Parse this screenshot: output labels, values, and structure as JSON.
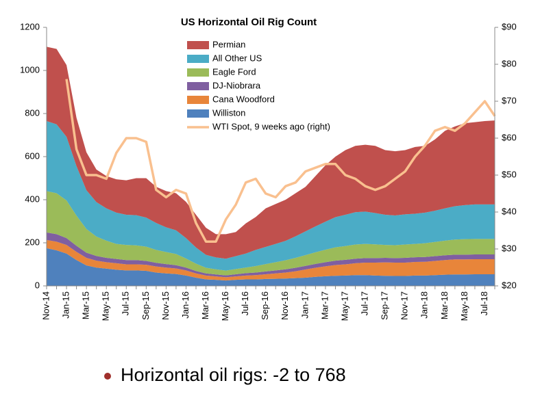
{
  "chart_data": {
    "type": "area",
    "title": "US Horizontal Oil Rig Count",
    "categories": [
      "Nov-14",
      null,
      "Jan-15",
      null,
      "Mar-15",
      null,
      "May-15",
      null,
      "Jul-15",
      null,
      "Sep-15",
      null,
      "Nov-15",
      null,
      "Jan-16",
      null,
      "Mar-16",
      null,
      "May-16",
      null,
      "Jul-16",
      null,
      "Sep-16",
      null,
      "Nov-16",
      null,
      "Jan-17",
      null,
      "Mar-17",
      null,
      "May-17",
      null,
      "Jul-17",
      null,
      "Sep-17",
      null,
      "Nov-17",
      null,
      "Jan-18",
      null,
      "Mar-18",
      null,
      "May-18",
      null,
      "Jul-18",
      null
    ],
    "series": [
      {
        "name": "Williston",
        "color": "#4f81bd",
        "values": [
          175,
          165,
          150,
          120,
          95,
          85,
          80,
          75,
          72,
          72,
          70,
          62,
          58,
          55,
          48,
          38,
          30,
          28,
          25,
          28,
          30,
          30,
          32,
          33,
          34,
          36,
          38,
          42,
          45,
          47,
          48,
          50,
          50,
          48,
          47,
          46,
          46,
          48,
          48,
          50,
          52,
          53,
          53,
          54,
          54,
          54
        ]
      },
      {
        "name": "Cana Woodford",
        "color": "#e8853a",
        "values": [
          38,
          40,
          40,
          38,
          35,
          32,
          30,
          30,
          28,
          28,
          28,
          28,
          27,
          26,
          24,
          20,
          18,
          16,
          15,
          16,
          18,
          20,
          22,
          25,
          28,
          32,
          38,
          42,
          46,
          50,
          52,
          55,
          58,
          60,
          62,
          62,
          62,
          63,
          64,
          66,
          68,
          70,
          70,
          70,
          70,
          70
        ]
      },
      {
        "name": "DJ-Niobrara",
        "color": "#7f5fa0",
        "values": [
          35,
          35,
          32,
          28,
          24,
          22,
          20,
          20,
          20,
          20,
          18,
          17,
          16,
          15,
          13,
          11,
          10,
          9,
          9,
          10,
          11,
          12,
          13,
          14,
          15,
          16,
          17,
          18,
          19,
          20,
          21,
          21,
          21,
          21,
          21,
          21,
          22,
          22,
          22,
          22,
          22,
          22,
          22,
          22,
          22,
          22
        ]
      },
      {
        "name": "Eagle Ford",
        "color": "#9bbb59",
        "values": [
          192,
          190,
          175,
          140,
          110,
          90,
          80,
          70,
          70,
          68,
          66,
          60,
          56,
          52,
          42,
          34,
          26,
          24,
          22,
          24,
          26,
          30,
          34,
          38,
          42,
          46,
          50,
          54,
          58,
          62,
          64,
          66,
          66,
          64,
          60,
          60,
          62,
          62,
          64,
          66,
          68,
          70,
          72,
          72,
          72,
          72
        ]
      },
      {
        "name": "All Other US",
        "color": "#4bacc6",
        "values": [
          325,
          320,
          295,
          230,
          180,
          160,
          150,
          145,
          140,
          140,
          135,
          125,
          115,
          110,
          95,
          75,
          60,
          55,
          55,
          60,
          65,
          75,
          80,
          85,
          90,
          100,
          110,
          120,
          130,
          140,
          145,
          150,
          150,
          145,
          140,
          138,
          140,
          140,
          142,
          145,
          150,
          155,
          158,
          160,
          160,
          160
        ]
      },
      {
        "name": "Permian",
        "color": "#c0504d",
        "values": [
          345,
          350,
          333,
          224,
          176,
          151,
          150,
          155,
          160,
          172,
          183,
          168,
          168,
          172,
          168,
          152,
          126,
          108,
          114,
          112,
          140,
          153,
          179,
          185,
          191,
          200,
          207,
          234,
          262,
          281,
          300,
          308,
          310,
          312,
          300,
          298,
          298,
          310,
          310,
          331,
          360,
          370,
          380,
          382,
          387,
          390
        ]
      },
      {
        "name": "WTI Spot, 9 weeks ago (right)",
        "color": "#f9c08f",
        "type": "line",
        "axis": "y2",
        "values": [
          null,
          null,
          76,
          57,
          50,
          50,
          49,
          56,
          60,
          60,
          59,
          46,
          44,
          46,
          45,
          37,
          32,
          32,
          38,
          42,
          48,
          49,
          45,
          44,
          47,
          48,
          51,
          52,
          53,
          53,
          50,
          49,
          47,
          46,
          47,
          49,
          51,
          55,
          58,
          62,
          63,
          62,
          64,
          67,
          70,
          66
        ]
      }
    ],
    "ylim": [
      0,
      1200
    ],
    "yticks": [
      0,
      200,
      400,
      600,
      800,
      1000,
      1200
    ],
    "y2lim": [
      20,
      90
    ],
    "y2ticks": [
      {
        "value": 20,
        "label": "$20"
      },
      {
        "value": 30,
        "label": "$30"
      },
      {
        "value": 40,
        "label": "$40"
      },
      {
        "value": 50,
        "label": "$50"
      },
      {
        "value": 60,
        "label": "$60"
      },
      {
        "value": 70,
        "label": "$70"
      },
      {
        "value": 80,
        "label": "$80"
      },
      {
        "value": 90,
        "label": "$90"
      }
    ]
  },
  "bullet_text": "Horizontal oil rigs: -2 to 768"
}
